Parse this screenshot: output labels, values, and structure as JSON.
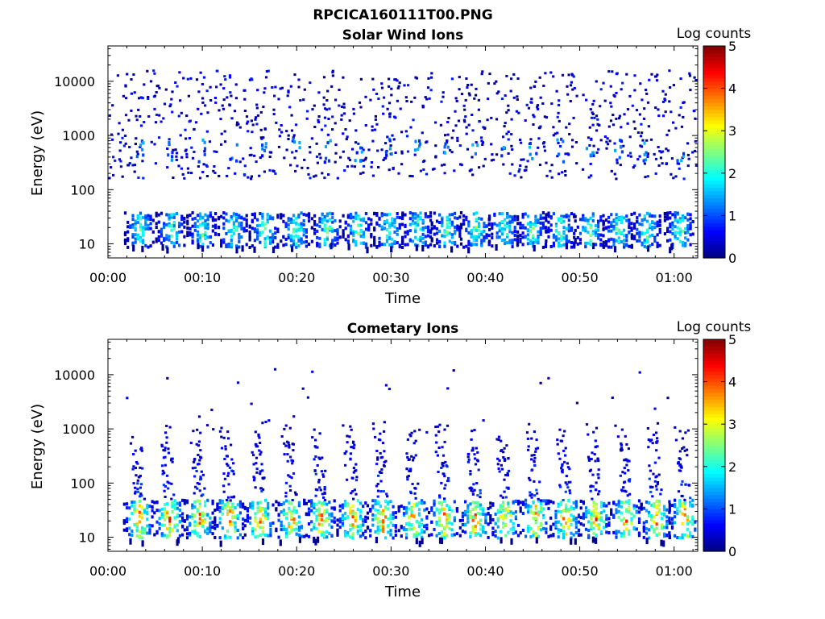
{
  "figure_title": "RPCICA160111T00.PNG",
  "colorscale": [
    "#00007f",
    "#0000ff",
    "#007fff",
    "#00ffff",
    "#7fff7f",
    "#ffff00",
    "#ff7f00",
    "#ff0000",
    "#7f0000"
  ],
  "chart_data": [
    {
      "type": "heatmap",
      "title": "Solar Wind Ions",
      "xlabel": "Time",
      "ylabel": "Energy (eV)",
      "x_tick_labels": [
        "00:00",
        "00:10",
        "00:20",
        "00:30",
        "00:40",
        "00:50",
        "01:00"
      ],
      "x_tick_minutes": [
        0,
        10,
        20,
        30,
        40,
        50,
        60
      ],
      "xlim_minutes": [
        0,
        62.5
      ],
      "yscale": "log",
      "ylim": [
        5.5,
        45000
      ],
      "y_tick_labels": [
        "10",
        "100",
        "1000",
        "10000"
      ],
      "y_tick_values": [
        10,
        100,
        1000,
        10000
      ],
      "grid": false,
      "colorbar": {
        "label": "Log counts",
        "ticks": [
          "0",
          "1",
          "2",
          "3",
          "4",
          "5"
        ],
        "range": [
          0,
          5
        ]
      },
      "pattern": {
        "seed": 7,
        "background_points": 900,
        "background_energy_range": [
          150,
          15000
        ],
        "background_level": [
          0,
          0.8
        ],
        "low_band_energy": [
          8,
          35
        ],
        "burst_minutes": [
          3.3,
          6.6,
          9.9,
          13.2,
          16.5,
          19.8,
          23.1,
          26.4,
          29.7,
          32.7,
          35.8,
          38.9,
          41.9,
          44.9,
          47.9,
          51.0,
          54.0,
          57.0,
          60.5
        ],
        "burst_peak_level": 1.8,
        "mid_streak_energy": [
          300,
          800
        ]
      }
    },
    {
      "type": "heatmap",
      "title": "Cometary Ions",
      "xlabel": "Time",
      "ylabel": "Energy (eV)",
      "x_tick_labels": [
        "00:00",
        "00:10",
        "00:20",
        "00:30",
        "00:40",
        "00:50",
        "01:00"
      ],
      "x_tick_minutes": [
        0,
        10,
        20,
        30,
        40,
        50,
        60
      ],
      "xlim_minutes": [
        0,
        62.5
      ],
      "yscale": "log",
      "ylim": [
        5.5,
        45000
      ],
      "y_tick_labels": [
        "10",
        "100",
        "1000",
        "10000"
      ],
      "y_tick_values": [
        10,
        100,
        1000,
        10000
      ],
      "grid": false,
      "colorbar": {
        "label": "Log counts",
        "ticks": [
          "0",
          "1",
          "2",
          "3",
          "4",
          "5"
        ],
        "range": [
          0,
          5
        ]
      },
      "pattern": {
        "seed": 13,
        "background_points": 40,
        "background_energy_range": [
          800,
          12000
        ],
        "background_level": [
          0,
          0.6
        ],
        "low_band_energy": [
          9,
          45
        ],
        "burst_minutes": [
          3.2,
          6.4,
          9.6,
          12.8,
          16.0,
          19.3,
          22.5,
          25.8,
          29.0,
          32.3,
          35.5,
          38.8,
          42.0,
          45.2,
          48.4,
          51.6,
          54.8,
          58.0,
          61.0
        ],
        "burst_peak_level": 2.9,
        "plume_energy_max": 1100
      }
    }
  ]
}
